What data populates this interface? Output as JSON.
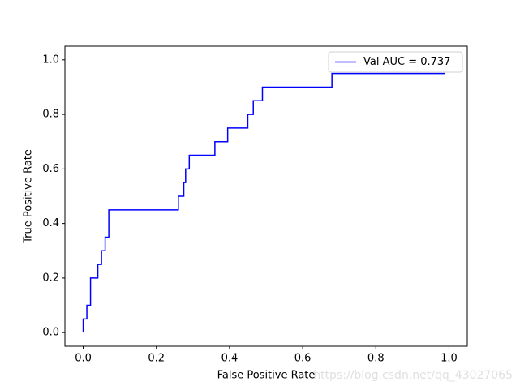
{
  "chart_data": {
    "type": "line",
    "x_label": "False Positive Rate",
    "y_label": "True Positive Rate",
    "series": [
      {
        "name": "Val AUC = 0.737",
        "color": "#0000ff",
        "x": [
          0,
          0,
          0.01,
          0.01,
          0.02,
          0.02,
          0.04,
          0.04,
          0.05,
          0.05,
          0.06,
          0.06,
          0.07,
          0.07,
          0.26,
          0.26,
          0.275,
          0.275,
          0.28,
          0.28,
          0.29,
          0.29,
          0.36,
          0.36,
          0.395,
          0.395,
          0.45,
          0.45,
          0.465,
          0.465,
          0.49,
          0.49,
          0.68,
          0.68,
          0.99
        ],
        "values": [
          0,
          0.05,
          0.05,
          0.1,
          0.1,
          0.2,
          0.2,
          0.25,
          0.25,
          0.3,
          0.3,
          0.35,
          0.35,
          0.45,
          0.45,
          0.5,
          0.5,
          0.55,
          0.55,
          0.6,
          0.6,
          0.65,
          0.65,
          0.7,
          0.7,
          0.75,
          0.75,
          0.8,
          0.8,
          0.85,
          0.85,
          0.9,
          0.9,
          0.95,
          0.95
        ]
      }
    ],
    "xlim": [
      -0.05,
      1.05
    ],
    "ylim": [
      -0.05,
      1.05
    ],
    "xticks": [
      {
        "value": 0,
        "label": "0.0"
      },
      0.2,
      0.4,
      0.6,
      0.8,
      {
        "value": 1,
        "label": "1.0"
      }
    ],
    "yticks": [
      {
        "value": 0,
        "label": "0.0"
      },
      0.2,
      0.4,
      0.6,
      0.8,
      {
        "value": 1,
        "label": "1.0"
      }
    ],
    "legend": "upper right",
    "grid": false,
    "watermark": "https://blog.csdn.net/qq_43027065"
  }
}
